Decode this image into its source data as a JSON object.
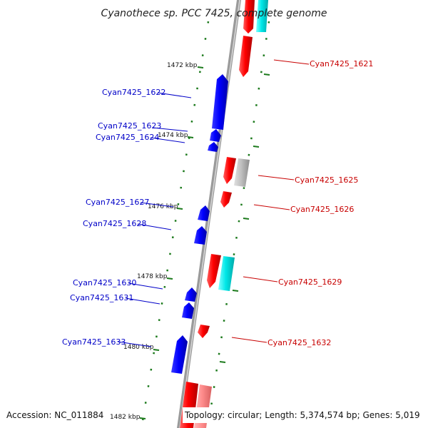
{
  "title": "Cyanothece sp. PCC 7425, complete genome",
  "accession": "Accession: NC_011884",
  "topology": "Topology: circular; Length: 5,374,574 bp; Genes: 5,019",
  "colors": {
    "forward": "#ff0000",
    "reverse": "#0000ff",
    "rna_cyan": "#00e5e5",
    "pseudo_gray": "#bbbbbb",
    "pink": "#ff8888",
    "backbone": "#909090",
    "tick_green": "#1c7a1c",
    "label_blue": "#0000c8",
    "label_red": "#c80000"
  },
  "ticks": [
    "1472 kbp",
    "1474 kbp",
    "1476 kbp",
    "1478 kbp",
    "1480 kbp",
    "1482 kbp"
  ],
  "genes_left": [
    {
      "label": "Cyan7425_1622"
    },
    {
      "label": "Cyan7425_1623"
    },
    {
      "label": "Cyan7425_1624"
    },
    {
      "label": "Cyan7425_1627"
    },
    {
      "label": "Cyan7425_1628"
    },
    {
      "label": "Cyan7425_1630"
    },
    {
      "label": "Cyan7425_1631"
    },
    {
      "label": "Cyan7425_1633"
    }
  ],
  "genes_right": [
    {
      "label": "Cyan7425_1621"
    },
    {
      "label": "Cyan7425_1625"
    },
    {
      "label": "Cyan7425_1626"
    },
    {
      "label": "Cyan7425_1629"
    },
    {
      "label": "Cyan7425_1632"
    }
  ]
}
